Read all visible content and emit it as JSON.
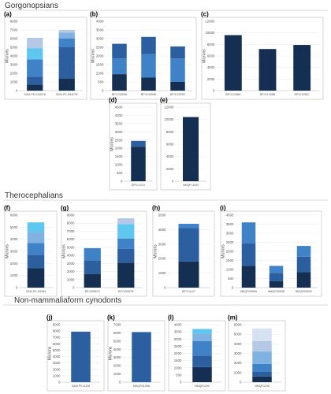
{
  "sections": [
    {
      "title": "Gorgonopsians"
    },
    {
      "title": "Therocephalians"
    },
    {
      "title": "Non-mammaliaform cynodonts"
    }
  ],
  "colors": {
    "c1": "#142f52",
    "c2": "#2c5f9f",
    "c3": "#3f82c8",
    "c4": "#7fb2e0",
    "c5": "#5ec6ef",
    "c6": "#b5c8e6",
    "frame": "#b7b7b7"
  },
  "chart_data": [
    {
      "panel_label": "(a)",
      "type": "bar",
      "stacked": true,
      "ylabel": "Microns",
      "ylim": [
        0,
        8000
      ],
      "yticks": [
        0,
        1000,
        2000,
        3000,
        4000,
        5000,
        6000,
        7000,
        8000
      ],
      "categories": [
        "SAM-PK-K8407A",
        "SAM-PK-K8407B"
      ],
      "stacks": [
        {
          "segments": [
            {
              "value": 700,
              "color": "#142f52"
            },
            {
              "value": 900,
              "color": "#2c5f9f"
            },
            {
              "value": 2000,
              "color": "#3f82c8"
            },
            {
              "value": 1300,
              "color": "#5ec6ef"
            },
            {
              "value": 1200,
              "color": "#b5c8e6"
            }
          ]
        },
        {
          "segments": [
            {
              "value": 1400,
              "color": "#142f52"
            },
            {
              "value": 3600,
              "color": "#2c5f9f"
            },
            {
              "value": 1000,
              "color": "#3f82c8"
            },
            {
              "value": 700,
              "color": "#7fb2e0"
            },
            {
              "value": 300,
              "color": "#b5c8e6"
            }
          ]
        }
      ]
    },
    {
      "panel_label": "(b)",
      "type": "bar",
      "stacked": true,
      "ylabel": "Microns",
      "ylim": [
        0,
        4000
      ],
      "yticks": [
        0,
        500,
        1000,
        1500,
        2000,
        2500,
        3000,
        3500,
        4000
      ],
      "categories": [
        "BP/1/4259A",
        "BP/1/4259B",
        "BP/1/4259C"
      ],
      "stacks": [
        {
          "segments": [
            {
              "value": 950,
              "color": "#142f52"
            },
            {
              "value": 900,
              "color": "#3f82c8"
            },
            {
              "value": 850,
              "color": "#2c5f9f"
            }
          ]
        },
        {
          "segments": [
            {
              "value": 750,
              "color": "#142f52"
            },
            {
              "value": 1350,
              "color": "#3f82c8"
            },
            {
              "value": 1000,
              "color": "#2c5f9f"
            }
          ]
        },
        {
          "segments": [
            {
              "value": 500,
              "color": "#142f52"
            },
            {
              "value": 1350,
              "color": "#3f82c8"
            },
            {
              "value": 700,
              "color": "#2c5f9f"
            }
          ]
        }
      ]
    },
    {
      "panel_label": "(c)",
      "type": "bar",
      "stacked": true,
      "ylabel": "Microns",
      "ylim": [
        0,
        12000
      ],
      "yticks": [
        0,
        2000,
        4000,
        6000,
        8000,
        10000,
        12000
      ],
      "categories": [
        "BP/1/1258A",
        "BP/1/1258B",
        "BP/1/1258C"
      ],
      "stacks": [
        {
          "segments": [
            {
              "value": 9600,
              "color": "#142f52"
            }
          ]
        },
        {
          "segments": [
            {
              "value": 7200,
              "color": "#142f52"
            }
          ]
        },
        {
          "segments": [
            {
              "value": 7900,
              "color": "#142f52"
            }
          ]
        }
      ]
    },
    {
      "panel_label": "(d)",
      "type": "bar",
      "stacked": true,
      "ylabel": "Microns",
      "ylim": [
        0,
        4500
      ],
      "yticks": [
        0,
        500,
        1000,
        1500,
        2000,
        2500,
        3000,
        3500,
        4000,
        4500
      ],
      "categories": [
        "BP/1/1210"
      ],
      "stacks": [
        {
          "segments": [
            {
              "value": 2100,
              "color": "#142f52"
            },
            {
              "value": 350,
              "color": "#2c5f9f"
            }
          ]
        }
      ]
    },
    {
      "panel_label": "(e)",
      "type": "bar",
      "stacked": true,
      "ylabel": "",
      "ylim": [
        0,
        12000
      ],
      "yticks": [
        0,
        2000,
        4000,
        6000,
        8000,
        10000,
        12000
      ],
      "categories": [
        "NMQR 4000"
      ],
      "stacks": [
        {
          "segments": [
            {
              "value": 10400,
              "color": "#142f52"
            }
          ]
        }
      ]
    },
    {
      "panel_label": "(f)",
      "type": "bar",
      "stacked": true,
      "ylabel": "Microns",
      "ylim": [
        0,
        6000
      ],
      "yticks": [
        0,
        1000,
        2000,
        3000,
        4000,
        5000,
        6000
      ],
      "categories": [
        "SAM-PK-K9984"
      ],
      "stacks": [
        {
          "segments": [
            {
              "value": 1600,
              "color": "#142f52"
            },
            {
              "value": 1100,
              "color": "#2c5f9f"
            },
            {
              "value": 1000,
              "color": "#3f82c8"
            },
            {
              "value": 900,
              "color": "#7fb2e0"
            },
            {
              "value": 800,
              "color": "#5ec6ef"
            }
          ]
        }
      ]
    },
    {
      "panel_label": "(g)",
      "type": "bar",
      "stacked": true,
      "ylabel": "Microns",
      "ylim": [
        0,
        9000
      ],
      "yticks": [
        0,
        1000,
        2000,
        3000,
        4000,
        5000,
        6000,
        7000,
        8000,
        9000
      ],
      "categories": [
        "BP/1/5587A",
        "BP/1/5587B"
      ],
      "stacks": [
        {
          "segments": [
            {
              "value": 1700,
              "color": "#142f52"
            },
            {
              "value": 1700,
              "color": "#2c5f9f"
            },
            {
              "value": 1500,
              "color": "#3f82c8"
            }
          ]
        },
        {
          "segments": [
            {
              "value": 3100,
              "color": "#142f52"
            },
            {
              "value": 1700,
              "color": "#2c5f9f"
            },
            {
              "value": 1300,
              "color": "#3f82c8"
            },
            {
              "value": 1800,
              "color": "#5ec6ef"
            },
            {
              "value": 700,
              "color": "#b5c8e6"
            }
          ]
        }
      ]
    },
    {
      "panel_label": "(h)",
      "type": "bar",
      "stacked": true,
      "ylabel": "Microns",
      "ylim": [
        0,
        5000
      ],
      "yticks": [
        0,
        1000,
        2000,
        3000,
        4000,
        5000
      ],
      "categories": [
        "BP/1/4127"
      ],
      "stacks": [
        {
          "segments": [
            {
              "value": 1800,
              "color": "#142f52"
            },
            {
              "value": 2300,
              "color": "#2c5f9f"
            },
            {
              "value": 300,
              "color": "#3f82c8"
            }
          ]
        }
      ]
    },
    {
      "panel_label": "(i)",
      "type": "bar",
      "stacked": true,
      "ylabel": "Microns",
      "ylim": [
        0,
        4000
      ],
      "yticks": [
        0,
        500,
        1000,
        1500,
        2000,
        2500,
        3000,
        3500,
        4000
      ],
      "categories": [
        "NMQR3959A",
        "NMQR3959B",
        "NMQR3959C"
      ],
      "stacks": [
        {
          "segments": [
            {
              "value": 1200,
              "color": "#142f52"
            },
            {
              "value": 1250,
              "color": "#2c5f9f"
            },
            {
              "value": 1150,
              "color": "#3f82c8"
            }
          ]
        },
        {
          "segments": [
            {
              "value": 350,
              "color": "#142f52"
            },
            {
              "value": 450,
              "color": "#2c5f9f"
            },
            {
              "value": 400,
              "color": "#3f82c8"
            }
          ]
        },
        {
          "segments": [
            {
              "value": 850,
              "color": "#142f52"
            },
            {
              "value": 850,
              "color": "#2c5f9f"
            },
            {
              "value": 600,
              "color": "#3f82c8"
            }
          ]
        }
      ]
    },
    {
      "panel_label": "(j)",
      "type": "bar",
      "stacked": true,
      "ylabel": "Microns",
      "ylim": [
        0,
        9000
      ],
      "yticks": [
        0,
        1000,
        2000,
        3000,
        4000,
        5000,
        6000,
        7000,
        8000,
        9000
      ],
      "categories": [
        "SAM-PK-K326"
      ],
      "stacks": [
        {
          "segments": [
            {
              "value": 7900,
              "color": "#2c5f9f"
            }
          ]
        }
      ]
    },
    {
      "panel_label": "(k)",
      "type": "bar",
      "stacked": true,
      "ylabel": "Microns",
      "ylim": [
        0,
        7000
      ],
      "yticks": [
        0,
        1000,
        2000,
        3000,
        4000,
        5000,
        6000,
        7000
      ],
      "categories": [
        "NMQR3139A"
      ],
      "stacks": [
        {
          "segments": [
            {
              "value": 6100,
              "color": "#2c5f9f"
            }
          ]
        }
      ]
    },
    {
      "panel_label": "(l)",
      "type": "bar",
      "stacked": true,
      "ylabel": "",
      "ylim": [
        0,
        4000
      ],
      "yticks": [
        0,
        500,
        1000,
        1500,
        2000,
        2500,
        3000,
        3500,
        4000
      ],
      "categories": [
        "NMQR1290"
      ],
      "stacks": [
        {
          "segments": [
            {
              "value": 1050,
              "color": "#142f52"
            },
            {
              "value": 800,
              "color": "#2c5f9f"
            },
            {
              "value": 1000,
              "color": "#3f82c8"
            },
            {
              "value": 500,
              "color": "#7fb2e0"
            },
            {
              "value": 350,
              "color": "#5ec6ef"
            }
          ]
        }
      ]
    },
    {
      "panel_label": "(m)",
      "type": "bar",
      "stacked": true,
      "ylabel": "",
      "ylim": [
        0,
        6000
      ],
      "yticks": [
        0,
        1000,
        2000,
        3000,
        4000,
        5000,
        6000
      ],
      "categories": [
        "NMQR1295"
      ],
      "stacks": [
        {
          "segments": [
            {
              "value": 600,
              "color": "#142f52"
            },
            {
              "value": 500,
              "color": "#2c5f9f"
            },
            {
              "value": 800,
              "color": "#3f82c8"
            },
            {
              "value": 1300,
              "color": "#7fb2e0"
            },
            {
              "value": 1100,
              "color": "#b5c8e6"
            },
            {
              "value": 1300,
              "color": "#d6e2f2"
            }
          ]
        }
      ]
    }
  ]
}
